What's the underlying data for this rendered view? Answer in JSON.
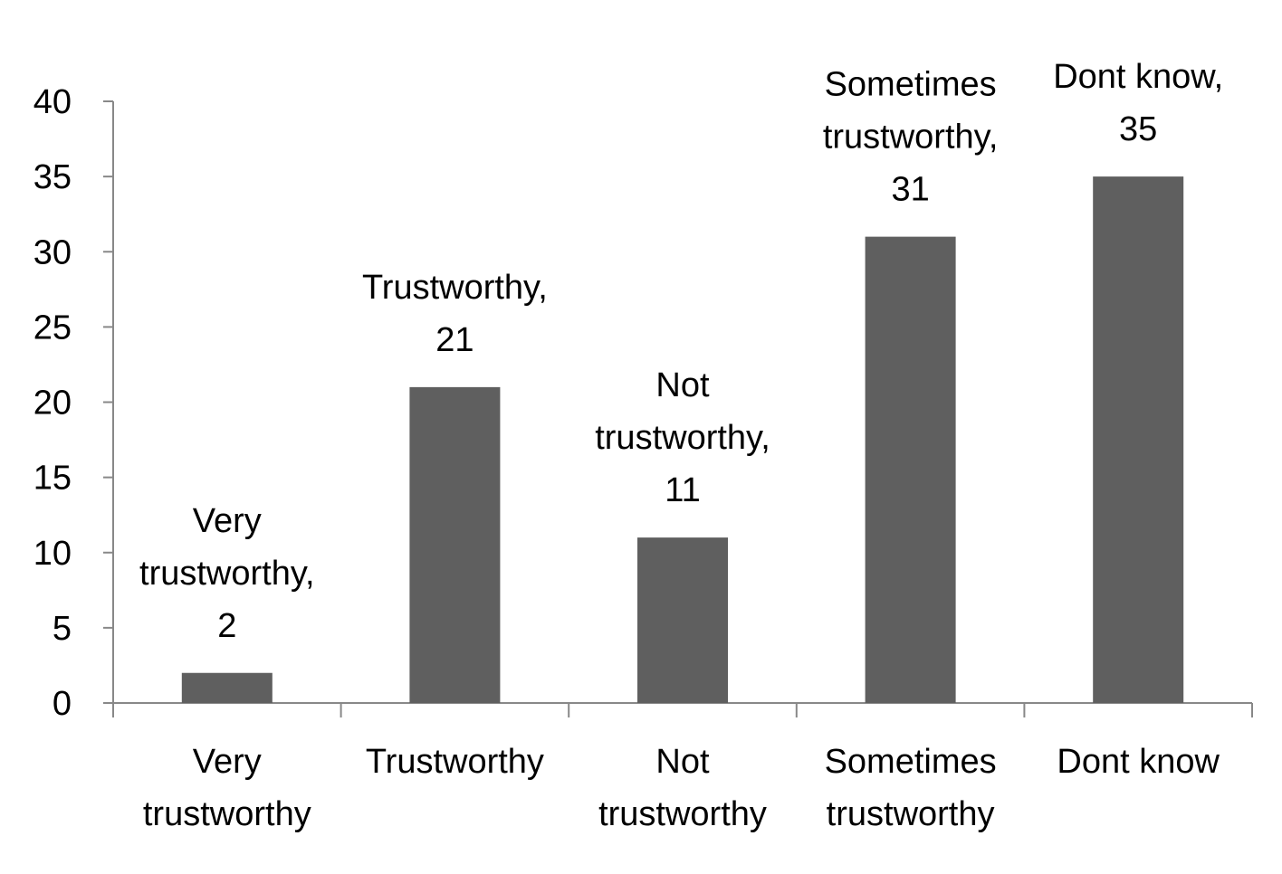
{
  "chart_data": {
    "type": "bar",
    "categories": [
      [
        "Very",
        "trustworthy"
      ],
      [
        "Trustworthy"
      ],
      [
        "Not",
        "trustworthy"
      ],
      [
        "Sometimes",
        "trustworthy"
      ],
      [
        "Dont know"
      ]
    ],
    "values": [
      2,
      21,
      11,
      31,
      35
    ],
    "data_labels": [
      [
        "Very",
        "trustworthy,",
        "2"
      ],
      [
        "Trustworthy,",
        "21"
      ],
      [
        "Not",
        "trustworthy,",
        "11"
      ],
      [
        "Sometimes",
        "trustworthy,",
        "31"
      ],
      [
        "Dont know,",
        "35"
      ]
    ],
    "y_ticks": [
      "0",
      "5",
      "10",
      "15",
      "20",
      "25",
      "30",
      "35",
      "40"
    ],
    "ylim": [
      0,
      40
    ],
    "title": "",
    "xlabel": "",
    "ylabel": "",
    "grid": false,
    "legend": "none",
    "colors": {
      "bar": "#5f5f5f",
      "axis": "#888888",
      "text": "#000000"
    }
  }
}
